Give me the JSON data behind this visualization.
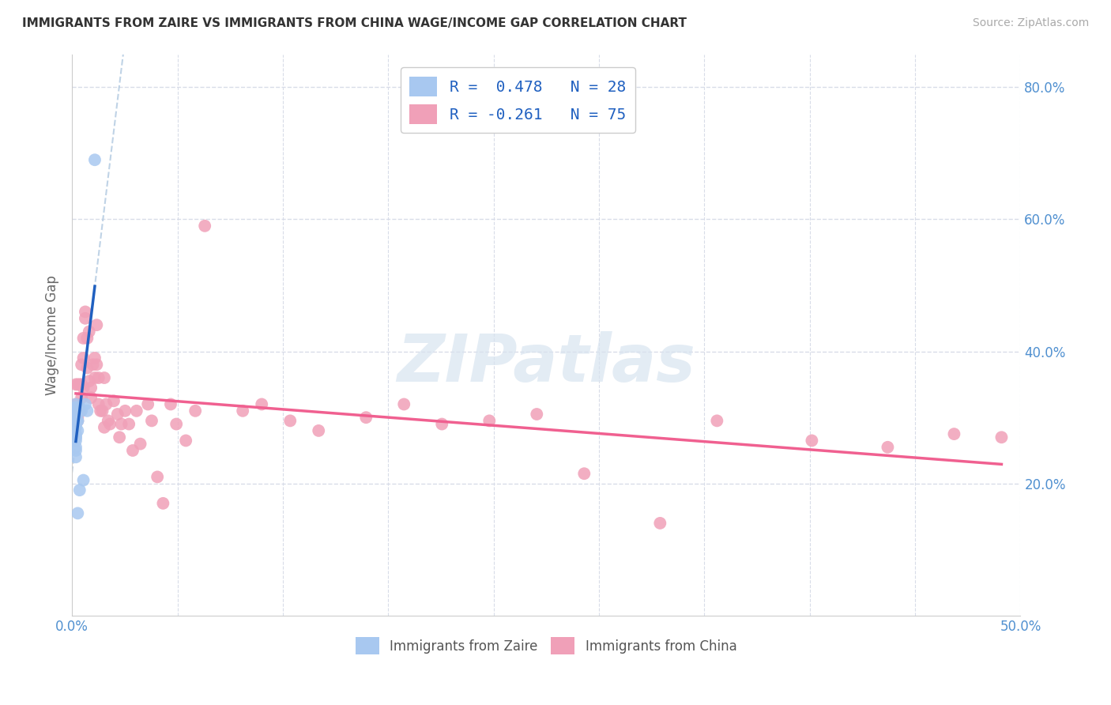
{
  "title": "IMMIGRANTS FROM ZAIRE VS IMMIGRANTS FROM CHINA WAGE/INCOME GAP CORRELATION CHART",
  "source": "Source: ZipAtlas.com",
  "ylabel": "Wage/Income Gap",
  "xlim": [
    0.0,
    0.5
  ],
  "ylim": [
    0.0,
    0.85
  ],
  "xticks": [
    0.0,
    0.05556,
    0.1111,
    0.1667,
    0.2222,
    0.2778,
    0.3333,
    0.3889,
    0.4444,
    0.5
  ],
  "xtick_labels_sparse": {
    "0.0": "0.0%",
    "0.5": "50.0%"
  },
  "yticks": [
    0.2,
    0.4,
    0.6,
    0.8
  ],
  "ytick_labels": [
    "20.0%",
    "40.0%",
    "60.0%",
    "80.0%"
  ],
  "legend1_label": "R =  0.478   N = 28",
  "legend2_label": "R = -0.261   N = 75",
  "legend_label1": "Immigrants from Zaire",
  "legend_label2": "Immigrants from China",
  "zaire_color": "#a8c8f0",
  "china_color": "#f0a0b8",
  "zaire_line_color": "#2060c0",
  "china_line_color": "#f06090",
  "dashed_line_color": "#b0c8e0",
  "watermark": "ZIPatlas",
  "watermark_color": "#d8e4f0",
  "background_color": "#ffffff",
  "grid_color": "#d8dce8",
  "tick_color": "#5090d0",
  "zaire_x": [
    0.002,
    0.002,
    0.003,
    0.002,
    0.002,
    0.003,
    0.002,
    0.002,
    0.002,
    0.002,
    0.002,
    0.002,
    0.002,
    0.002,
    0.002,
    0.002,
    0.002,
    0.002,
    0.002,
    0.003,
    0.004,
    0.005,
    0.007,
    0.008,
    0.006,
    0.004,
    0.003,
    0.012
  ],
  "zaire_y": [
    0.265,
    0.27,
    0.28,
    0.29,
    0.295,
    0.295,
    0.3,
    0.305,
    0.305,
    0.31,
    0.315,
    0.315,
    0.32,
    0.285,
    0.275,
    0.27,
    0.255,
    0.25,
    0.24,
    0.295,
    0.315,
    0.31,
    0.32,
    0.31,
    0.205,
    0.19,
    0.155,
    0.69
  ],
  "china_x": [
    0.002,
    0.002,
    0.002,
    0.002,
    0.002,
    0.003,
    0.003,
    0.003,
    0.003,
    0.003,
    0.004,
    0.004,
    0.004,
    0.005,
    0.005,
    0.005,
    0.006,
    0.006,
    0.006,
    0.007,
    0.007,
    0.008,
    0.008,
    0.009,
    0.009,
    0.01,
    0.01,
    0.011,
    0.012,
    0.012,
    0.013,
    0.013,
    0.014,
    0.014,
    0.015,
    0.016,
    0.017,
    0.017,
    0.018,
    0.019,
    0.02,
    0.022,
    0.024,
    0.025,
    0.026,
    0.028,
    0.03,
    0.032,
    0.034,
    0.036,
    0.04,
    0.042,
    0.045,
    0.048,
    0.052,
    0.055,
    0.06,
    0.065,
    0.07,
    0.09,
    0.1,
    0.115,
    0.13,
    0.155,
    0.175,
    0.195,
    0.22,
    0.245,
    0.27,
    0.31,
    0.34,
    0.39,
    0.43,
    0.465,
    0.49
  ],
  "china_y": [
    0.3,
    0.31,
    0.35,
    0.295,
    0.32,
    0.295,
    0.3,
    0.32,
    0.35,
    0.31,
    0.31,
    0.35,
    0.31,
    0.33,
    0.35,
    0.38,
    0.345,
    0.39,
    0.42,
    0.45,
    0.46,
    0.375,
    0.42,
    0.355,
    0.43,
    0.33,
    0.345,
    0.38,
    0.36,
    0.39,
    0.44,
    0.38,
    0.32,
    0.36,
    0.31,
    0.31,
    0.36,
    0.285,
    0.32,
    0.295,
    0.29,
    0.325,
    0.305,
    0.27,
    0.29,
    0.31,
    0.29,
    0.25,
    0.31,
    0.26,
    0.32,
    0.295,
    0.21,
    0.17,
    0.32,
    0.29,
    0.265,
    0.31,
    0.59,
    0.31,
    0.32,
    0.295,
    0.28,
    0.3,
    0.32,
    0.29,
    0.295,
    0.305,
    0.215,
    0.14,
    0.295,
    0.265,
    0.255,
    0.275,
    0.27
  ]
}
